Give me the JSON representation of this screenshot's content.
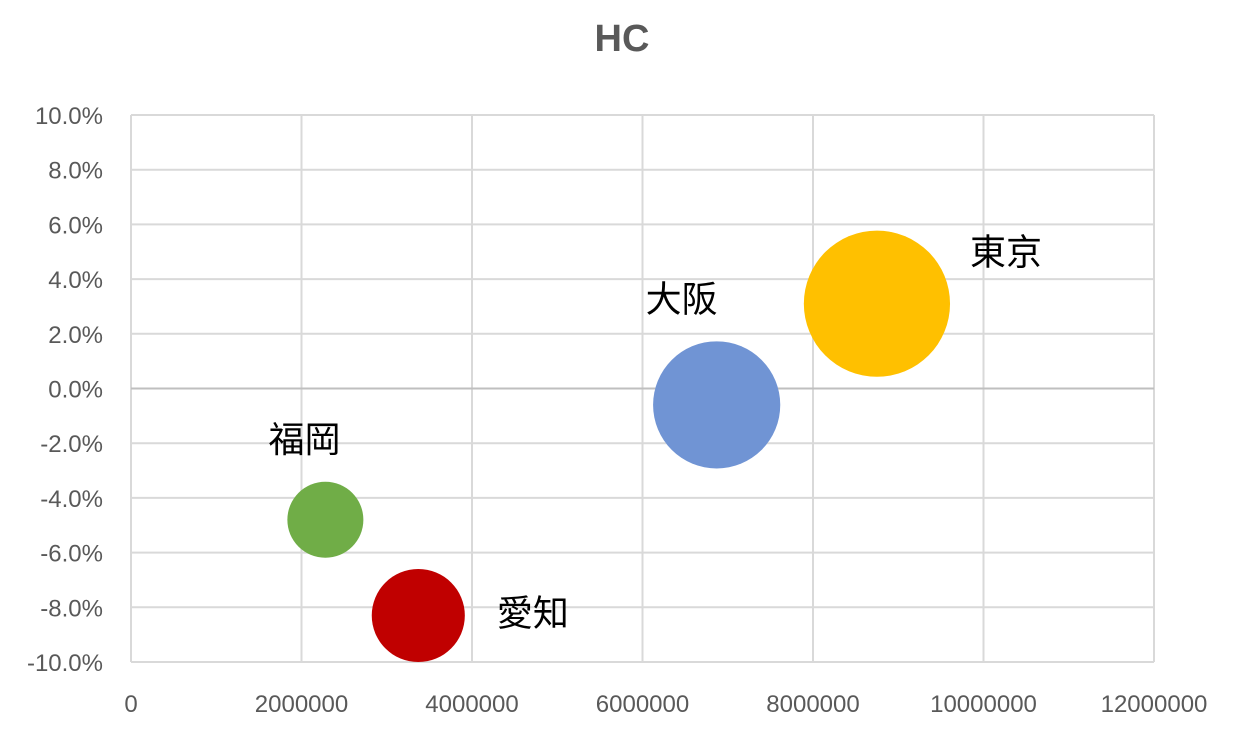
{
  "chart_data": {
    "type": "scatter",
    "subtype": "bubble",
    "title": "HC",
    "xlabel": "",
    "ylabel": "",
    "xlim": [
      0,
      12000000
    ],
    "ylim": [
      -0.1,
      0.1
    ],
    "x_ticks": [
      "0",
      "2000000",
      "4000000",
      "6000000",
      "8000000",
      "10000000",
      "12000000"
    ],
    "y_ticks": [
      "-10.0%",
      "-8.0%",
      "-6.0%",
      "-4.0%",
      "-2.0%",
      "0.0%",
      "2.0%",
      "4.0%",
      "6.0%",
      "8.0%",
      "10.0%"
    ],
    "grid": true,
    "legend": "none",
    "points": [
      {
        "label": "福岡",
        "x": 2280000,
        "y": -0.048,
        "size": 1.0,
        "color": "#70AD47",
        "label_pos": "above-left"
      },
      {
        "label": "愛知",
        "x": 3370000,
        "y": -0.083,
        "size": 1.5,
        "color": "#C00000",
        "label_pos": "right"
      },
      {
        "label": "大阪",
        "x": 6870000,
        "y": -0.006,
        "size": 2.8,
        "color": "#7094D4",
        "label_pos": "above-left"
      },
      {
        "label": "東京",
        "x": 8750000,
        "y": 0.031,
        "size": 3.7,
        "color": "#FFC000",
        "label_pos": "above-right"
      }
    ]
  }
}
